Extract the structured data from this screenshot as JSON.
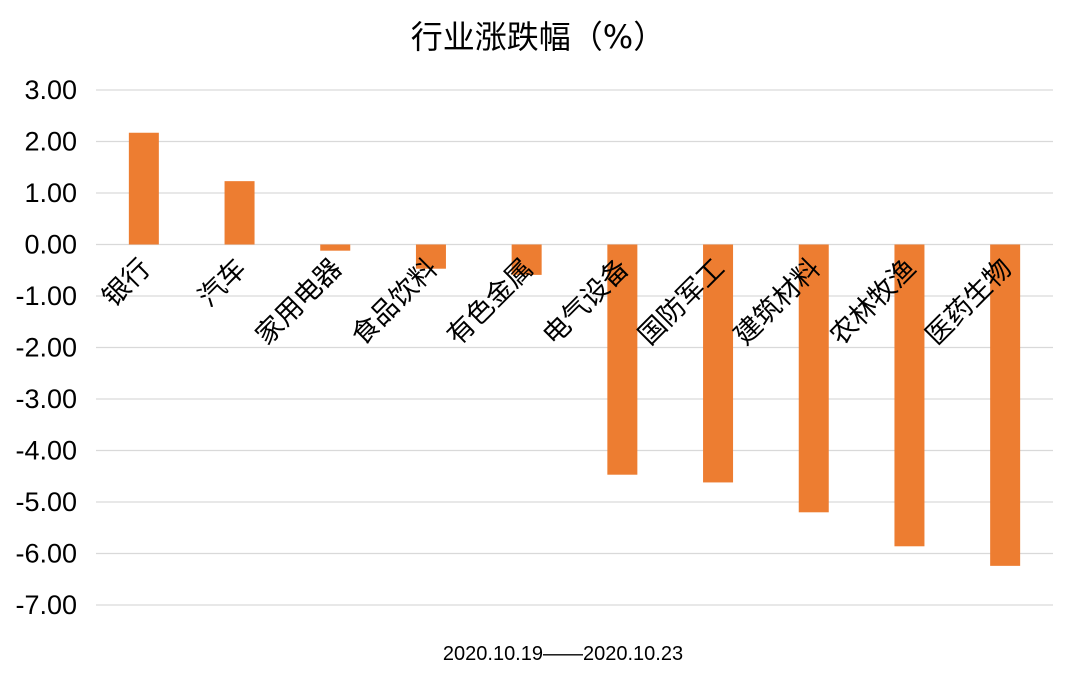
{
  "chart_data": {
    "type": "bar",
    "title": "行业涨跌幅（%）",
    "xlabel": "2020.10.19——2020.10.23",
    "ylabel": "",
    "categories": [
      "银行",
      "汽车",
      "家用电器",
      "食品饮料",
      "有色金属",
      "电气设备",
      "国防军工",
      "建筑材料",
      "农林牧渔",
      "医药生物"
    ],
    "values": [
      2.17,
      1.23,
      -0.12,
      -0.47,
      -0.59,
      -4.47,
      -4.62,
      -5.2,
      -5.86,
      -6.24
    ],
    "ylim": [
      -7,
      3
    ],
    "yticks": [
      "3.00",
      "2.00",
      "1.00",
      "0.00",
      "-1.00",
      "-2.00",
      "-3.00",
      "-4.00",
      "-5.00",
      "-6.00",
      "-7.00"
    ],
    "grid": true,
    "legend": "none",
    "bar_color": "#ED7D31",
    "grid_color": "#D9D9D9"
  }
}
